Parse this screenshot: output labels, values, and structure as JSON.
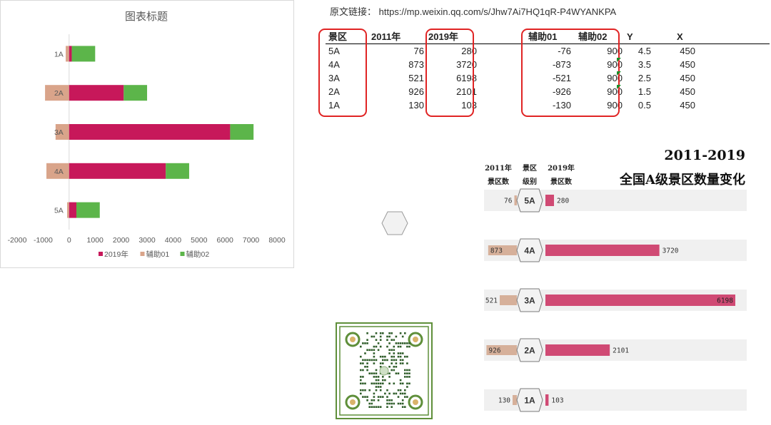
{
  "source_link": {
    "label": "原文链接：",
    "url": "https://mp.weixin.qq.com/s/Jhw7Ai7HQ1qR-P4WYANKPA"
  },
  "table": {
    "headers": [
      "景区",
      "2011年",
      "2019年",
      "辅助01",
      "辅助02",
      "Y",
      "X"
    ],
    "rows": [
      [
        "5A",
        "76",
        "280",
        "-76",
        "900",
        "4.5",
        "450"
      ],
      [
        "4A",
        "873",
        "3720",
        "-873",
        "900",
        "3.5",
        "450"
      ],
      [
        "3A",
        "521",
        "6198",
        "-521",
        "900",
        "2.5",
        "450"
      ],
      [
        "2A",
        "926",
        "2101",
        "-926",
        "900",
        "1.5",
        "450"
      ],
      [
        "1A",
        "130",
        "103",
        "-130",
        "900",
        "0.5",
        "450"
      ]
    ]
  },
  "chart_data": [
    {
      "type": "bar",
      "orientation": "horizontal",
      "stacked": true,
      "title": "图表标题",
      "categories": [
        "5A",
        "4A",
        "3A",
        "2A",
        "1A"
      ],
      "series": [
        {
          "name": "2019年",
          "values": [
            280,
            3720,
            6198,
            2101,
            103
          ],
          "color": "#c7185a"
        },
        {
          "name": "辅助01",
          "values": [
            -76,
            -873,
            -521,
            -926,
            -130
          ],
          "color": "#d9a48a"
        },
        {
          "name": "辅助02",
          "values": [
            900,
            900,
            900,
            900,
            900
          ],
          "color": "#5cb54a"
        }
      ],
      "xlim": [
        -2000,
        8000
      ],
      "xticks": [
        "-2000",
        "-1000",
        "0",
        "1000",
        "2000",
        "3000",
        "4000",
        "5000",
        "6000",
        "7000",
        "8000"
      ],
      "legend_position": "bottom",
      "grid": false
    },
    {
      "type": "bar",
      "orientation": "horizontal",
      "title": "2011-2019",
      "subtitle": "全国A级景区数量变化",
      "column_headers": {
        "left": [
          "2011年",
          "景区数"
        ],
        "middle": [
          "景区",
          "级别"
        ],
        "right": [
          "2019年",
          "景区数"
        ]
      },
      "categories": [
        "5A",
        "4A",
        "3A",
        "2A",
        "1A"
      ],
      "series": [
        {
          "name": "2011年",
          "values": [
            76,
            873,
            521,
            926,
            130
          ],
          "color": "#d6b09a"
        },
        {
          "name": "2019年",
          "values": [
            280,
            3720,
            6198,
            2101,
            103
          ],
          "color": "#d04a74"
        }
      ],
      "row_background": "#f0f0f0",
      "grid": false
    }
  ],
  "colors": {
    "highlight_box": "#e02424",
    "qr_frame": "#5f8f3a"
  },
  "icons": {
    "hexagon": "hexagon-shape",
    "qr": "qr-code"
  }
}
